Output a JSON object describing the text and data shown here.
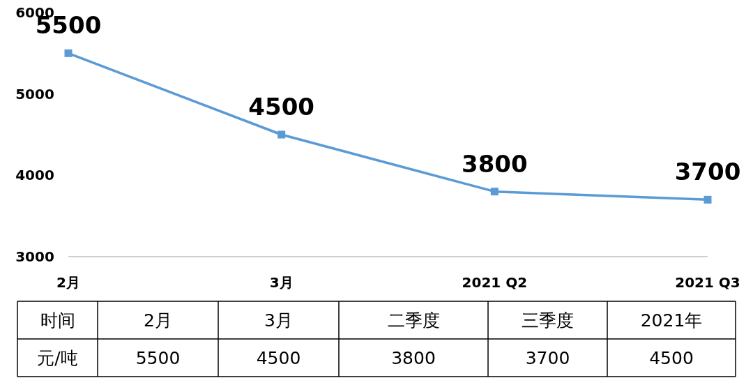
{
  "chart_data": [
    {
      "type": "line",
      "categories": [
        "2月",
        "3月",
        "2021 Q2",
        "2021 Q3"
      ],
      "values": [
        5500,
        4500,
        3800,
        3700
      ],
      "color": "#5b9bd5",
      "ylim": [
        3000,
        6000
      ],
      "yticks": [
        3000,
        4000,
        5000,
        6000
      ],
      "marker": "square",
      "data_labels": true
    },
    {
      "type": "other",
      "xlabel": "时间",
      "ylabel": "元/吨",
      "categories": [
        "2月",
        "3月",
        "二季度",
        "三季度",
        "2021年"
      ],
      "values": [
        5500,
        4500,
        3800,
        3700,
        4500
      ],
      "data_labels": true
    }
  ]
}
